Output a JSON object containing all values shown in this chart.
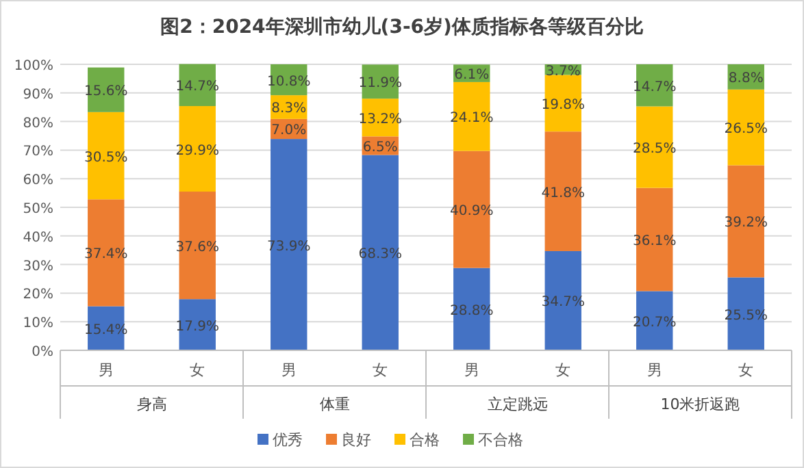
{
  "chart_data": {
    "type": "bar",
    "title": "图2：2024年深圳市幼儿(3-6岁)体质指标各等级百分比",
    "categories": [
      "男",
      "女",
      "男",
      "女",
      "男",
      "女",
      "男",
      "女"
    ],
    "annotations": [
      "身高",
      "体重",
      "立定跳远",
      "10米折返跑"
    ],
    "stacked": true,
    "grid": "y",
    "legend": "bottom",
    "ylim": [
      0,
      100
    ],
    "yticks": [
      {
        "value": 0,
        "label": "0%"
      },
      {
        "value": 10,
        "label": "10%"
      },
      {
        "value": 20,
        "label": "20%"
      },
      {
        "value": 30,
        "label": "30%"
      },
      {
        "value": 40,
        "label": "40%"
      },
      {
        "value": 50,
        "label": "50%"
      },
      {
        "value": 60,
        "label": "60%"
      },
      {
        "value": 70,
        "label": "70%"
      },
      {
        "value": 80,
        "label": "80%"
      },
      {
        "value": 90,
        "label": "90%"
      },
      {
        "value": 100,
        "label": "100%"
      }
    ],
    "series": [
      {
        "name": "优秀",
        "color": "#4472c4",
        "values": [
          15.4,
          17.9,
          73.9,
          68.3,
          28.8,
          34.7,
          20.7,
          25.5
        ],
        "value_labels": [
          "15.4%",
          "17.9%",
          "73.9%",
          "68.3%",
          "28.8%",
          "34.7%",
          "20.7%",
          "25.5%"
        ]
      },
      {
        "name": "良好",
        "color": "#ed7d31",
        "values": [
          37.4,
          37.6,
          7.0,
          6.5,
          40.9,
          41.8,
          36.1,
          39.2
        ],
        "value_labels": [
          "37.4%",
          "37.6%",
          "7.0%",
          "6.5%",
          "40.9%",
          "41.8%",
          "36.1%",
          "39.2%"
        ]
      },
      {
        "name": "合格",
        "color": "#ffc000",
        "values": [
          30.5,
          29.9,
          8.3,
          13.2,
          24.1,
          19.8,
          28.5,
          26.5
        ],
        "value_labels": [
          "30.5%",
          "29.9%",
          "8.3%",
          "13.2%",
          "24.1%",
          "19.8%",
          "28.5%",
          "26.5%"
        ]
      },
      {
        "name": "不合格",
        "color": "#70ad47",
        "values": [
          15.6,
          14.7,
          10.8,
          11.9,
          6.1,
          3.7,
          14.7,
          8.8
        ],
        "value_labels": [
          "15.6%",
          "14.7%",
          "10.8%",
          "11.9%",
          "6.1%",
          "3.7%",
          "14.7%",
          "8.8%"
        ]
      }
    ]
  }
}
